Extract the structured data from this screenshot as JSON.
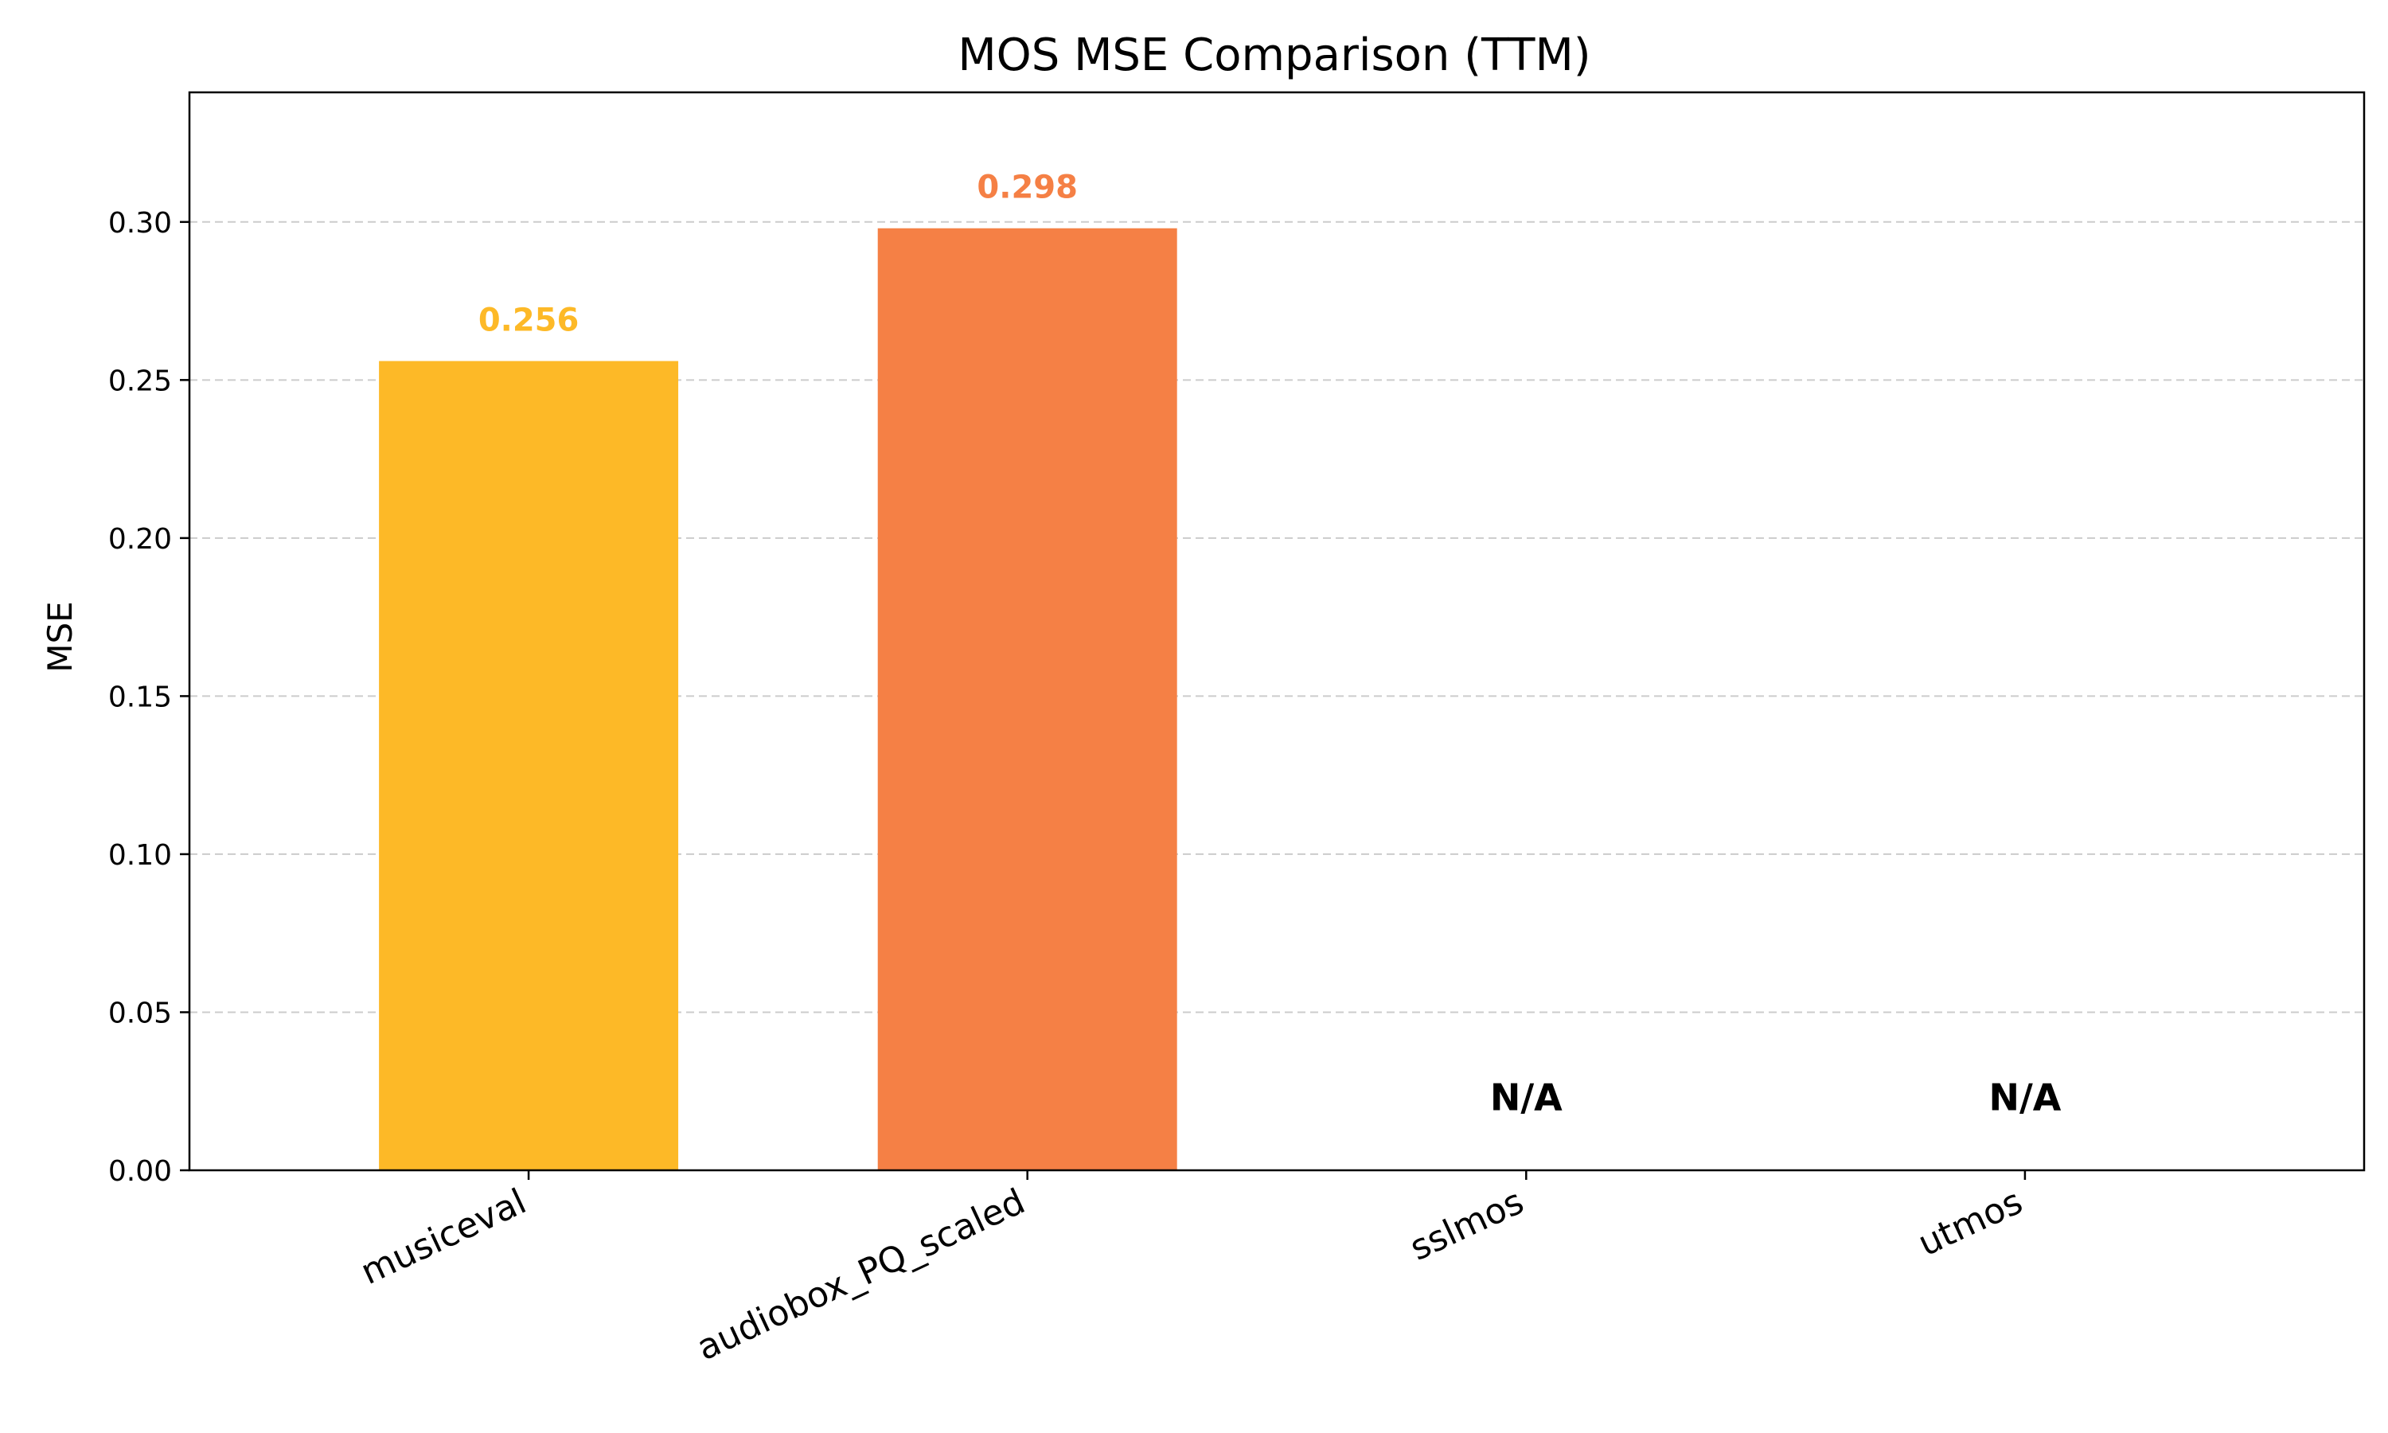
{
  "chart_data": {
    "type": "bar",
    "title": "MOS MSE Comparison (TTM)",
    "xlabel": "",
    "ylabel": "MSE",
    "categories": [
      "musiceval",
      "audiobox_PQ_scaled",
      "sslmos",
      "utmos"
    ],
    "values": [
      0.256,
      0.298,
      null,
      null
    ],
    "value_labels": [
      "0.256",
      "0.298",
      "N/A",
      "N/A"
    ],
    "colors": [
      "#FDB927",
      "#F58045",
      null,
      null
    ],
    "ylim": [
      0,
      0.341
    ],
    "yticks": [
      0.0,
      0.05,
      0.1,
      0.15,
      0.2,
      0.25,
      0.3
    ],
    "ytick_labels": [
      "0.00",
      "0.05",
      "0.10",
      "0.15",
      "0.20",
      "0.25",
      "0.30"
    ],
    "grid": "y-dashed",
    "legend": "none"
  }
}
